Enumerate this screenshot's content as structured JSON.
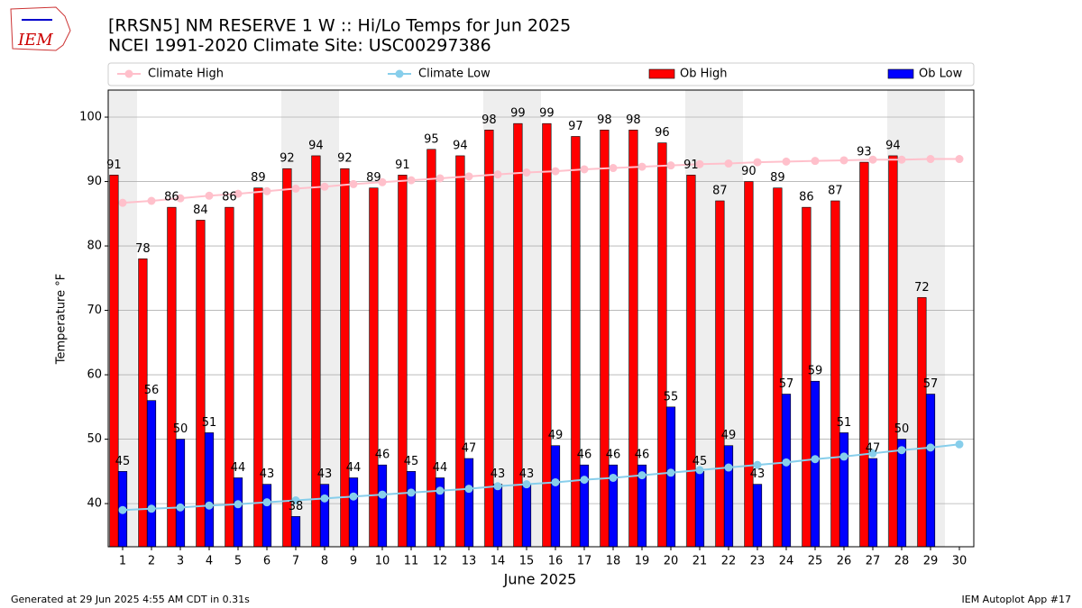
{
  "logo_text": "IEM",
  "footer_left": "Generated at 29 Jun 2025 4:55 AM CDT in 0.31s",
  "footer_right": "IEM Autoplot App #17",
  "chart_data": {
    "type": "bar",
    "title": "[RRSN5] NM RESERVE 1 W :: Hi/Lo Temps for Jun 2025",
    "subtitle": "NCEI 1991-2020 Climate Site: USC00297386",
    "x_label": "June 2025",
    "y_label": "Temperature °F",
    "x": [
      1,
      2,
      3,
      4,
      5,
      6,
      7,
      8,
      9,
      10,
      11,
      12,
      13,
      14,
      15,
      16,
      17,
      18,
      19,
      20,
      21,
      22,
      23,
      24,
      25,
      26,
      27,
      28,
      29,
      30
    ],
    "xlim": [
      0.5,
      30.5
    ],
    "xticks": [
      1,
      2,
      3,
      4,
      5,
      6,
      7,
      8,
      9,
      10,
      11,
      12,
      13,
      14,
      15,
      16,
      17,
      18,
      19,
      20,
      21,
      22,
      23,
      24,
      25,
      26,
      27,
      28,
      29,
      30
    ],
    "ylim": [
      33.3,
      104.2
    ],
    "yticks": [
      40,
      50,
      60,
      70,
      80,
      90,
      100
    ],
    "grid": true,
    "legend": "top",
    "shaded_days": [
      1,
      7,
      8,
      14,
      15,
      21,
      22,
      28,
      29
    ],
    "shade_color": "#eeeeee",
    "series": [
      {
        "name": "Climate High",
        "type": "line",
        "color": "#ffc0cb",
        "values": [
          86.7,
          87.0,
          87.4,
          87.8,
          88.1,
          88.5,
          88.9,
          89.2,
          89.6,
          89.9,
          90.2,
          90.5,
          90.8,
          91.1,
          91.4,
          91.6,
          91.9,
          92.1,
          92.3,
          92.5,
          92.7,
          92.8,
          93.0,
          93.1,
          93.2,
          93.3,
          93.4,
          93.4,
          93.5,
          93.5
        ]
      },
      {
        "name": "Climate Low",
        "type": "line",
        "color": "#87ceeb",
        "values": [
          39.0,
          39.2,
          39.4,
          39.7,
          39.9,
          40.2,
          40.5,
          40.8,
          41.1,
          41.4,
          41.7,
          42.0,
          42.3,
          42.7,
          43.0,
          43.3,
          43.7,
          44.0,
          44.4,
          44.8,
          45.2,
          45.6,
          46.0,
          46.4,
          46.9,
          47.3,
          47.8,
          48.3,
          48.7,
          49.2
        ]
      },
      {
        "name": "Ob High",
        "type": "bar",
        "color": "#ff0000",
        "values": [
          91,
          78,
          86,
          84,
          86,
          89,
          92,
          94,
          92,
          89,
          91,
          95,
          94,
          98,
          99,
          99,
          97,
          98,
          98,
          96,
          91,
          87,
          90,
          89,
          86,
          87,
          93,
          94,
          72,
          null
        ]
      },
      {
        "name": "Ob Low",
        "type": "bar",
        "color": "#0000ff",
        "values": [
          45,
          56,
          50,
          51,
          44,
          43,
          38,
          43,
          44,
          46,
          45,
          44,
          47,
          43,
          43,
          49,
          46,
          46,
          46,
          55,
          45,
          49,
          43,
          57,
          59,
          51,
          47,
          50,
          57,
          null
        ]
      }
    ]
  }
}
